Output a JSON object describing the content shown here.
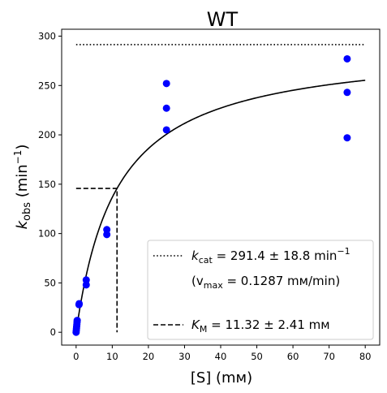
{
  "chart_data": {
    "type": "scatter",
    "title": "WT",
    "xlabel": "[S] (mм)",
    "ylabel": "k_obs (min⁻¹)",
    "ylabel_main": "k",
    "ylabel_sub": "obs",
    "ylabel_rest": " (min",
    "ylabel_sup": "−1",
    "ylabel_close": ")",
    "xlim": [
      -4,
      84
    ],
    "ylim": [
      -13,
      307
    ],
    "xticks": [
      0,
      10,
      20,
      30,
      40,
      50,
      60,
      70,
      80
    ],
    "yticks": [
      0,
      50,
      100,
      150,
      200,
      250,
      300
    ],
    "grid": false,
    "legend_position": "lower-right",
    "marker_color": "#0000ff",
    "line_color": "#000000",
    "points": [
      {
        "x": 0.0,
        "y": 0
      },
      {
        "x": 0.05,
        "y": 2
      },
      {
        "x": 0.1,
        "y": 4
      },
      {
        "x": 0.15,
        "y": 6
      },
      {
        "x": 0.2,
        "y": 8
      },
      {
        "x": 0.25,
        "y": 10
      },
      {
        "x": 0.3,
        "y": 12
      },
      {
        "x": 0.8,
        "y": 28
      },
      {
        "x": 0.85,
        "y": 29
      },
      {
        "x": 2.8,
        "y": 48
      },
      {
        "x": 2.8,
        "y": 53
      },
      {
        "x": 8.5,
        "y": 99
      },
      {
        "x": 8.5,
        "y": 104
      },
      {
        "x": 25,
        "y": 205
      },
      {
        "x": 25,
        "y": 227
      },
      {
        "x": 25,
        "y": 252
      },
      {
        "x": 75,
        "y": 197
      },
      {
        "x": 75,
        "y": 243
      },
      {
        "x": 75,
        "y": 277
      }
    ],
    "fit": {
      "name": "Michaelis-Menten fit",
      "kcat": 291.4,
      "km": 11.32,
      "x_range": [
        0,
        80
      ]
    },
    "kcat_line": {
      "y": 291.4,
      "x_range": [
        0,
        80
      ]
    },
    "km_line": {
      "x": 11.32,
      "y": 145.7
    },
    "legend": {
      "kcat_label": "k",
      "kcat_sub": "cat",
      "kcat_value": " = 291.4 ± 18.8 min",
      "kcat_sup": "−1",
      "vmax_open": "(v",
      "vmax_sub": "max",
      "vmax_value": " = 0.1287 mм/min)",
      "km_label": "K",
      "km_sub": "M",
      "km_value": " = 11.32 ± 2.41 mм"
    }
  }
}
